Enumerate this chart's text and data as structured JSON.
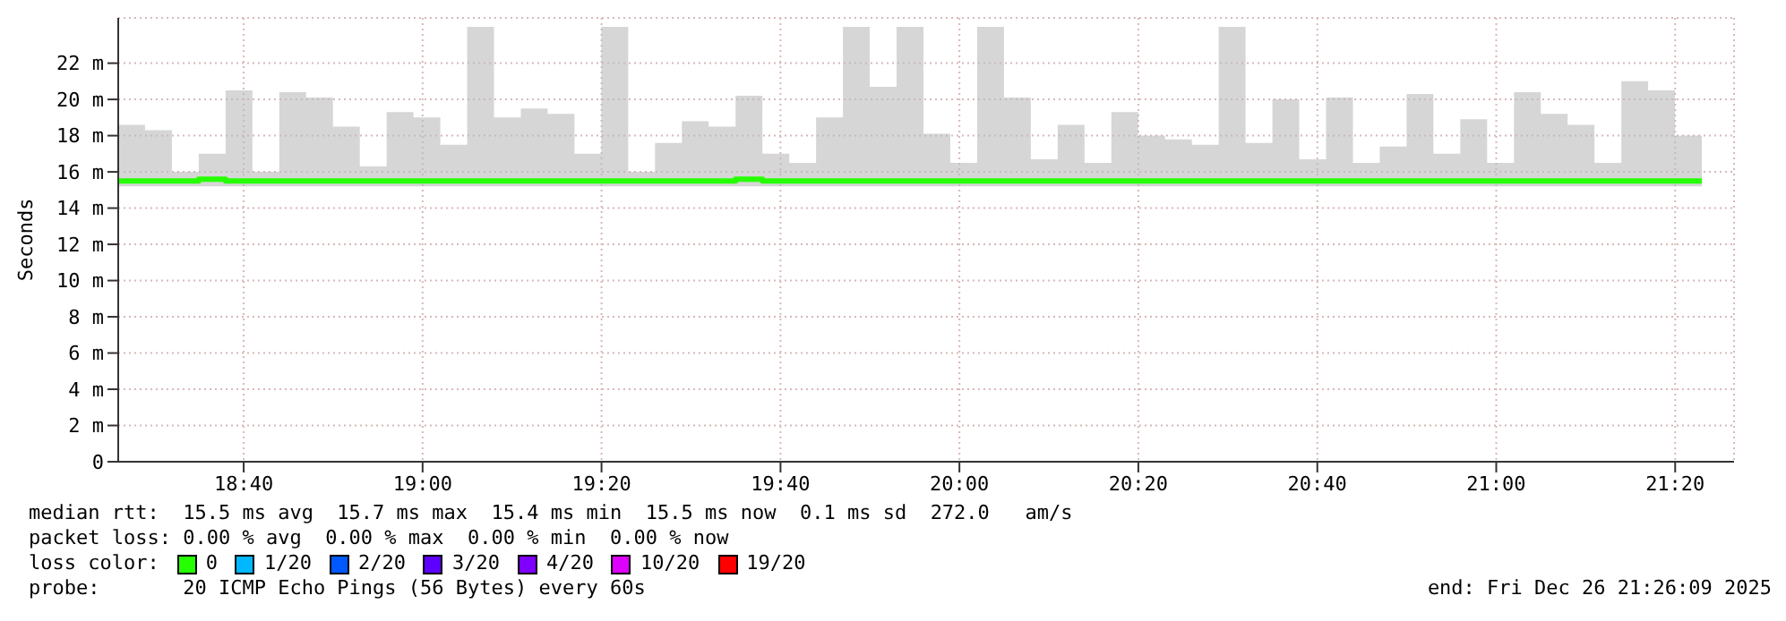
{
  "chart_data": {
    "type": "line",
    "ylabel": "Seconds",
    "legend_title": "loss color:",
    "x": [
      18.433,
      18.483,
      18.533,
      18.583,
      18.633,
      18.683,
      18.733,
      18.783,
      18.833,
      18.883,
      18.933,
      18.983,
      19.033,
      19.083,
      19.133,
      19.183,
      19.233,
      19.283,
      19.333,
      19.383,
      19.433,
      19.483,
      19.533,
      19.583,
      19.633,
      19.683,
      19.733,
      19.783,
      19.833,
      19.883,
      19.933,
      19.983,
      20.033,
      20.083,
      20.133,
      20.183,
      20.233,
      20.283,
      20.333,
      20.383,
      20.433,
      20.483,
      20.533,
      20.583,
      20.633,
      20.683,
      20.733,
      20.783,
      20.833,
      20.883,
      20.933,
      20.983,
      21.033,
      21.083,
      21.133,
      21.183,
      21.233,
      21.283,
      21.333,
      21.383
    ],
    "series": [
      {
        "name": "0",
        "color": "#26ff00",
        "values": [
          15.5,
          15.5,
          15.5,
          15.6,
          15.5,
          15.5,
          15.5,
          15.5,
          15.5,
          15.5,
          15.5,
          15.5,
          15.5,
          15.5,
          15.5,
          15.5,
          15.5,
          15.5,
          15.5,
          15.5,
          15.5,
          15.5,
          15.5,
          15.6,
          15.5,
          15.5,
          15.5,
          15.5,
          15.5,
          15.5,
          15.5,
          15.5,
          15.5,
          15.5,
          15.5,
          15.5,
          15.5,
          15.5,
          15.5,
          15.5,
          15.5,
          15.5,
          15.5,
          15.5,
          15.5,
          15.5,
          15.5,
          15.5,
          15.5,
          15.5,
          15.5,
          15.5,
          15.5,
          15.5,
          15.5,
          15.5,
          15.5,
          15.5,
          15.5,
          15.5
        ],
        "lower": [
          15.2,
          15.2,
          15.2,
          15.2,
          15.2,
          15.2,
          15.2,
          15.2,
          15.2,
          15.2,
          15.2,
          15.2,
          15.2,
          15.2,
          15.2,
          15.2,
          15.2,
          15.2,
          15.2,
          15.2,
          15.2,
          15.2,
          15.2,
          15.2,
          15.2,
          15.2,
          15.2,
          15.2,
          15.2,
          15.2,
          15.2,
          15.2,
          15.2,
          15.2,
          15.2,
          15.2,
          15.2,
          15.2,
          15.2,
          15.2,
          15.2,
          15.2,
          15.2,
          15.2,
          15.2,
          15.2,
          15.2,
          15.2,
          15.2,
          15.2,
          15.2,
          15.2,
          15.2,
          15.2,
          15.2,
          15.2,
          15.2,
          15.2,
          15.2,
          15.2
        ],
        "upper": [
          18.6,
          18.3,
          16,
          17,
          20.5,
          16,
          20.4,
          20.1,
          18.5,
          16.3,
          19.3,
          19,
          17.5,
          24,
          19,
          19.5,
          19.2,
          17,
          24,
          16,
          17.6,
          18.8,
          18.5,
          20.2,
          17,
          16.5,
          19,
          24,
          20.7,
          24,
          18.1,
          16.5,
          24,
          20.1,
          16.7,
          18.6,
          16.5,
          19.3,
          18,
          17.8,
          17.5,
          24,
          17.6,
          20,
          16.7,
          20.1,
          16.5,
          17.4,
          20.3,
          17,
          18.9,
          16.5,
          20.4,
          19.2,
          18.6,
          16.5,
          21,
          20.5,
          18,
          16
        ]
      },
      {
        "name": "1/20",
        "color": "#00b8ff",
        "values": [
          null,
          null,
          null,
          null,
          null,
          null,
          null,
          null,
          null,
          null,
          null,
          null,
          null,
          null,
          null,
          null,
          null,
          null,
          null,
          null,
          null,
          null,
          null,
          null,
          null,
          null,
          null,
          null,
          null,
          null,
          null,
          null,
          null,
          null,
          null,
          null,
          null,
          null,
          null,
          null,
          null,
          null,
          null,
          null,
          null,
          null,
          null,
          null,
          null,
          null,
          null,
          null,
          null,
          null,
          null,
          null,
          null,
          null,
          null,
          null
        ]
      },
      {
        "name": "2/20",
        "color": "#0059ff",
        "values": [
          null,
          null,
          null,
          null,
          null,
          null,
          null,
          null,
          null,
          null,
          null,
          null,
          null,
          null,
          null,
          null,
          null,
          null,
          null,
          null,
          null,
          null,
          null,
          null,
          null,
          null,
          null,
          null,
          null,
          null,
          null,
          null,
          null,
          null,
          null,
          null,
          null,
          null,
          null,
          null,
          null,
          null,
          null,
          null,
          null,
          null,
          null,
          null,
          null,
          null,
          null,
          null,
          null,
          null,
          null,
          null,
          null,
          null,
          null,
          null
        ]
      },
      {
        "name": "3/20",
        "color": "#5e00ff",
        "values": [
          null,
          null,
          null,
          null,
          null,
          null,
          null,
          null,
          null,
          null,
          null,
          null,
          null,
          null,
          null,
          null,
          null,
          null,
          null,
          null,
          null,
          null,
          null,
          null,
          null,
          null,
          null,
          null,
          null,
          null,
          null,
          null,
          null,
          null,
          null,
          null,
          null,
          null,
          null,
          null,
          null,
          null,
          null,
          null,
          null,
          null,
          null,
          null,
          null,
          null,
          null,
          null,
          null,
          null,
          null,
          null,
          null,
          null,
          null,
          null
        ]
      },
      {
        "name": "4/20",
        "color": "#7e00ff",
        "values": [
          null,
          null,
          null,
          null,
          null,
          null,
          null,
          null,
          null,
          null,
          null,
          null,
          null,
          null,
          null,
          null,
          null,
          null,
          null,
          null,
          null,
          null,
          null,
          null,
          null,
          null,
          null,
          null,
          null,
          null,
          null,
          null,
          null,
          null,
          null,
          null,
          null,
          null,
          null,
          null,
          null,
          null,
          null,
          null,
          null,
          null,
          null,
          null,
          null,
          null,
          null,
          null,
          null,
          null,
          null,
          null,
          null,
          null,
          null,
          null
        ]
      },
      {
        "name": "10/20",
        "color": "#dd00ff",
        "values": [
          null,
          null,
          null,
          null,
          null,
          null,
          null,
          null,
          null,
          null,
          null,
          null,
          null,
          null,
          null,
          null,
          null,
          null,
          null,
          null,
          null,
          null,
          null,
          null,
          null,
          null,
          null,
          null,
          null,
          null,
          null,
          null,
          null,
          null,
          null,
          null,
          null,
          null,
          null,
          null,
          null,
          null,
          null,
          null,
          null,
          null,
          null,
          null,
          null,
          null,
          null,
          null,
          null,
          null,
          null,
          null,
          null,
          null,
          null,
          null
        ]
      },
      {
        "name": "19/20",
        "color": "#ff0000",
        "values": [
          null,
          null,
          null,
          null,
          null,
          null,
          null,
          null,
          null,
          null,
          null,
          null,
          null,
          null,
          null,
          null,
          null,
          null,
          null,
          null,
          null,
          null,
          null,
          null,
          null,
          null,
          null,
          null,
          null,
          null,
          null,
          null,
          null,
          null,
          null,
          null,
          null,
          null,
          null,
          null,
          null,
          null,
          null,
          null,
          null,
          null,
          null,
          null,
          null,
          null,
          null,
          null,
          null,
          null,
          null,
          null,
          null,
          null,
          null,
          null
        ]
      }
    ],
    "xlim": [
      18.433,
      21.443
    ],
    "xticks": [
      {
        "value": 18.6667,
        "label": "18:40"
      },
      {
        "value": 19,
        "label": "19:00"
      },
      {
        "value": 19.3333,
        "label": "19:20"
      },
      {
        "value": 19.6667,
        "label": "19:40"
      },
      {
        "value": 20,
        "label": "20:00"
      },
      {
        "value": 20.3333,
        "label": "20:20"
      },
      {
        "value": 20.6667,
        "label": "20:40"
      },
      {
        "value": 21,
        "label": "21:00"
      },
      {
        "value": 21.3333,
        "label": "21:20"
      }
    ],
    "ylim": [
      0,
      24.5
    ],
    "yticks": [
      0,
      {
        "value": 2,
        "label": "2 m"
      },
      {
        "value": 4,
        "label": "4 m"
      },
      {
        "value": 6,
        "label": "6 m"
      },
      {
        "value": 8,
        "label": "8 m"
      },
      {
        "value": 10,
        "label": "10 m"
      },
      {
        "value": 12,
        "label": "12 m"
      },
      {
        "value": 14,
        "label": "14 m"
      },
      {
        "value": 16,
        "label": "16 m"
      },
      {
        "value": 18,
        "label": "18 m"
      },
      {
        "value": 20,
        "label": "20 m"
      },
      {
        "value": 22,
        "label": "22 m"
      }
    ],
    "grid": true,
    "legend": "bottom",
    "marker": "none",
    "line_style": "solid",
    "annotations": [
      "median rtt:  15.5 ms avg  15.7 ms max  15.4 ms min  15.5 ms now  0.1 ms sd  272.0   am/s",
      "packet loss: 0.00 % avg  0.00 % max  0.00 % min  0.00 % now",
      "probe:       20 ICMP Echo Pings (56 Bytes) every 60s",
      "end: Fri Dec 26 21:26:09 2025"
    ]
  }
}
